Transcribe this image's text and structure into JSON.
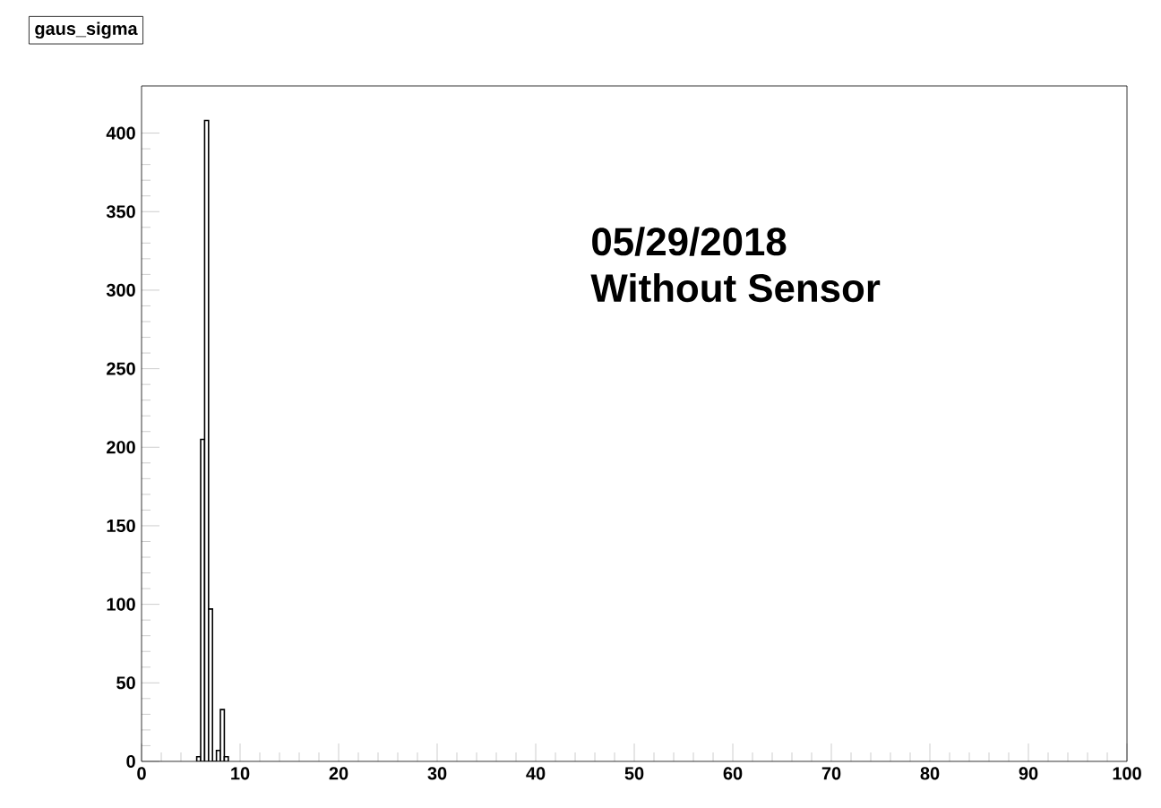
{
  "chart_data": {
    "type": "histogram",
    "title": "gaus_sigma",
    "bins": [
      5.6,
      6.0,
      6.4,
      6.8,
      7.2,
      7.6,
      8.0,
      8.4,
      8.8
    ],
    "values": [
      3,
      205,
      408,
      97,
      0,
      7,
      33,
      3
    ],
    "color": "#000000",
    "xlim": [
      0,
      100
    ],
    "ylim": [
      0,
      430
    ],
    "xticks": [
      0,
      10,
      20,
      30,
      40,
      50,
      60,
      70,
      80,
      90,
      100
    ],
    "yticks": [
      0,
      50,
      100,
      150,
      200,
      250,
      300,
      350,
      400
    ],
    "grid": false,
    "annotations": [
      "05/29/2018",
      "Without Sensor"
    ]
  }
}
